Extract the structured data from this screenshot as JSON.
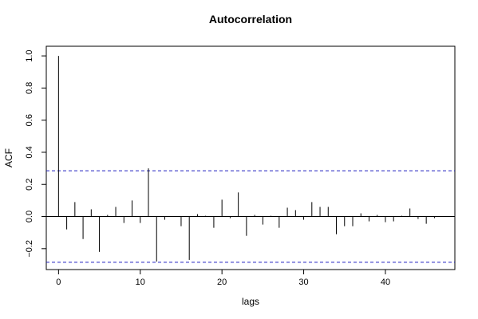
{
  "chart_data": {
    "type": "bar",
    "title": "Autocorrelation",
    "xlabel": "lags",
    "ylabel": "ACF",
    "xlim": [
      -1.5,
      48.5
    ],
    "ylim": [
      -0.33,
      1.06
    ],
    "xticks": [
      0,
      10,
      20,
      30,
      40
    ],
    "yticks": [
      -0.2,
      0.0,
      0.2,
      0.4,
      0.6,
      0.8,
      1.0
    ],
    "ytick_labels": [
      "−0.2",
      "0.0",
      "0.2",
      "0.4",
      "0.6",
      "0.8",
      "1.0"
    ],
    "confidence_bounds": [
      0.285,
      -0.285
    ],
    "x": [
      0,
      1,
      2,
      3,
      4,
      5,
      6,
      7,
      8,
      9,
      10,
      11,
      12,
      13,
      14,
      15,
      16,
      17,
      18,
      19,
      20,
      21,
      22,
      23,
      24,
      25,
      26,
      27,
      28,
      29,
      30,
      31,
      32,
      33,
      34,
      35,
      36,
      37,
      38,
      39,
      40,
      41,
      42,
      43,
      44,
      45,
      46,
      47
    ],
    "values": [
      1.0,
      -0.08,
      0.09,
      -0.14,
      0.045,
      -0.22,
      0.01,
      0.06,
      -0.04,
      0.1,
      -0.04,
      0.3,
      -0.28,
      -0.02,
      0.0,
      -0.06,
      -0.27,
      0.015,
      0.005,
      -0.07,
      0.105,
      -0.01,
      0.15,
      -0.12,
      0.01,
      -0.05,
      0.005,
      -0.07,
      0.055,
      0.04,
      -0.02,
      0.09,
      0.06,
      0.06,
      -0.11,
      -0.06,
      -0.06,
      0.02,
      -0.03,
      0.01,
      -0.035,
      -0.03,
      0.005,
      0.05,
      -0.015,
      -0.045,
      -0.01,
      0.0
    ]
  }
}
